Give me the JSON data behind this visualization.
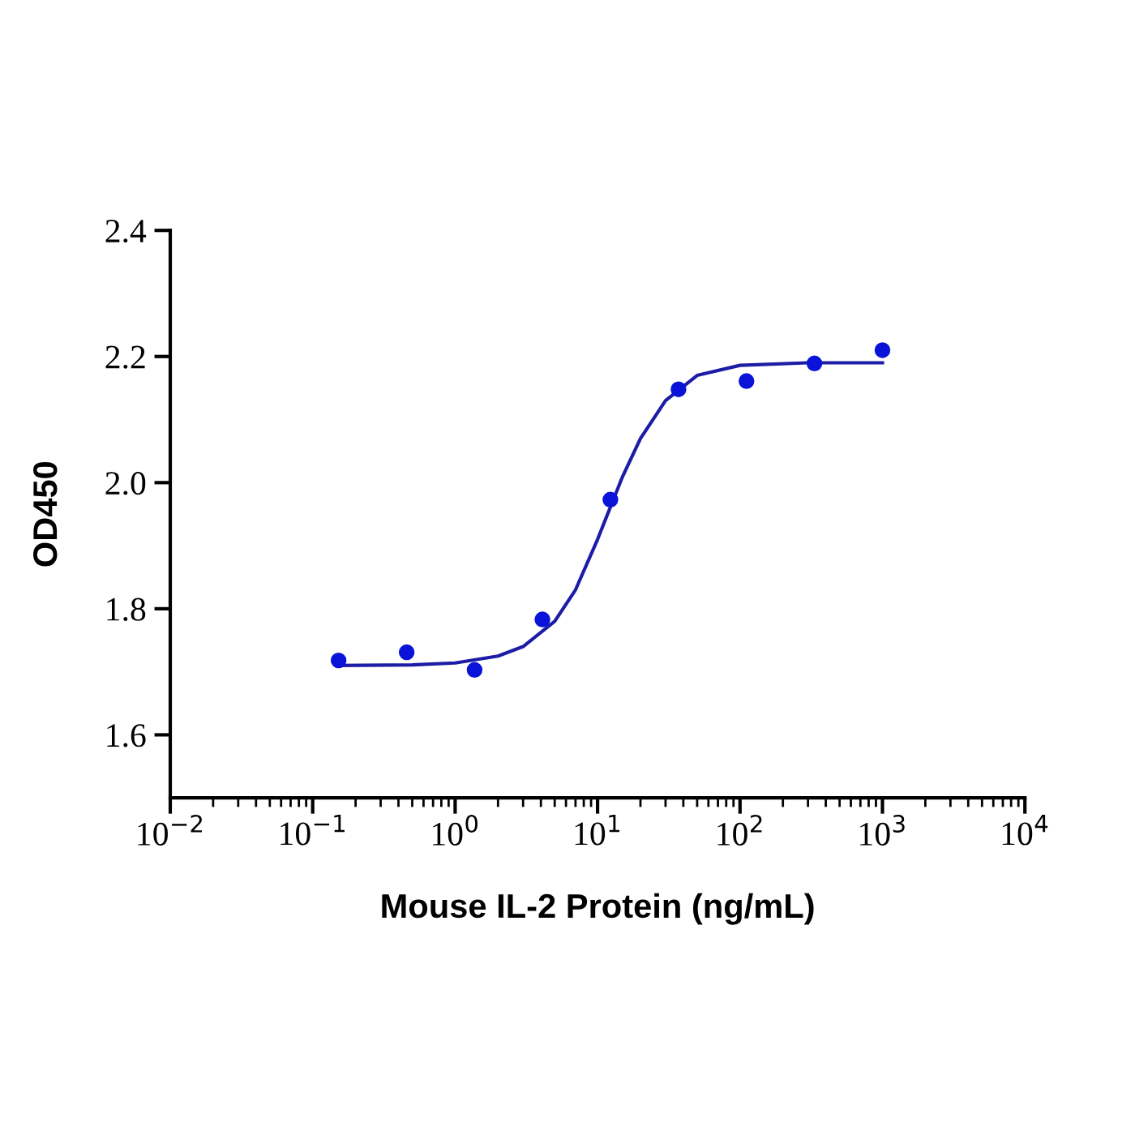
{
  "chart_data": {
    "type": "scatter",
    "xlabel": "Mouse IL-2 Protein (ng/mL)",
    "ylabel": "OD450",
    "log": "x",
    "grid": false,
    "legend": false,
    "marker": "circle",
    "xlim": [
      0.01,
      10000
    ],
    "ylim": [
      1.5,
      2.4
    ],
    "xticks": [
      {
        "value": 0.01,
        "label": "10$^{−2}$"
      },
      {
        "value": 0.1,
        "label": "10$^{−1}$"
      },
      {
        "value": 1,
        "label": "10$^{0}$"
      },
      {
        "value": 10,
        "label": "10$^{1}$"
      },
      {
        "value": 100,
        "label": "10$^{2}$"
      },
      {
        "value": 1000,
        "label": "10$^{3}$"
      },
      {
        "value": 10000,
        "label": "10$^{4}$"
      }
    ],
    "yticks": [
      1.6,
      1.8,
      {
        "value": 2.0,
        "label": "2.0"
      },
      2.2,
      2.4
    ],
    "series": [
      {
        "color": "#0a14d8",
        "x": [
          0.152,
          0.457,
          1.37,
          4.1,
          12.3,
          37,
          111,
          333,
          1000
        ],
        "values": [
          1.718,
          1.731,
          1.703,
          1.783,
          1.973,
          2.148,
          2.161,
          2.189,
          2.21
        ]
      },
      {
        "type": "line",
        "color": "#1c1ca6",
        "marker": "none",
        "x": [
          0.15,
          0.5,
          1,
          2,
          3,
          5,
          7,
          10,
          15,
          20,
          30,
          50,
          100,
          300,
          1000
        ],
        "values": [
          1.71,
          1.711,
          1.714,
          1.725,
          1.74,
          1.78,
          1.83,
          1.91,
          2.01,
          2.07,
          2.13,
          2.17,
          2.186,
          2.19,
          2.19
        ]
      }
    ]
  }
}
